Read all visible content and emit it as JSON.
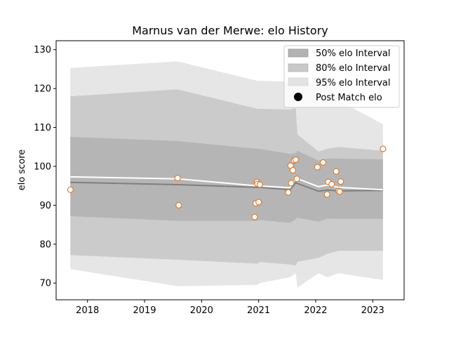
{
  "chart_data": {
    "type": "line",
    "title": "Marnus van der Merwe: elo History",
    "xlabel": "",
    "ylabel": "elo score",
    "xlim": [
      2017.45,
      2023.55
    ],
    "ylim": [
      65.7,
      132.3
    ],
    "x_ticks": [
      2018,
      2019,
      2020,
      2021,
      2022,
      2023
    ],
    "x_tick_labels": [
      "2018",
      "2019",
      "2020",
      "2021",
      "2022",
      "2023"
    ],
    "y_ticks": [
      70,
      80,
      90,
      100,
      110,
      120,
      130
    ],
    "y_tick_labels": [
      "70",
      "80",
      "90",
      "100",
      "110",
      "120",
      "130"
    ],
    "grid": false,
    "legend_position": "top-right",
    "legend": [
      {
        "label": "50% elo Interval",
        "kind": "band",
        "color": "#b3b3b3"
      },
      {
        "label": "80% elo Interval",
        "kind": "band",
        "color": "#c8c8c8"
      },
      {
        "label": "95% elo Interval",
        "kind": "band",
        "color": "#e3e3e3"
      },
      {
        "label": "Post Match elo",
        "kind": "marker",
        "color": "#000000"
      }
    ],
    "colors": {
      "band50": "#b3b3b3",
      "band80": "#c8c8c8",
      "band95": "#e3e3e3",
      "mean_line": "#7f7f7f",
      "pre_match_line": "#ffffff",
      "marker_edge": "#e07b2a",
      "marker_face": "#ffffff"
    },
    "interval_x": [
      2017.7,
      2019.58,
      2020.98,
      2021.02,
      2021.55,
      2021.65,
      2021.68,
      2022.05,
      2022.2,
      2022.4,
      2023.18
    ],
    "mean_elo": [
      95.9,
      95.3,
      94.6,
      94.6,
      94.0,
      95.8,
      95.6,
      93.6,
      93.9,
      93.7,
      93.8
    ],
    "band_50": {
      "lower": [
        87.2,
        86.0,
        86.0,
        86.2,
        85.5,
        86.4,
        86.8,
        85.8,
        86.6,
        86.5,
        86.5
      ],
      "upper": [
        107.6,
        106.5,
        104.5,
        104.5,
        103.2,
        103.4,
        104.0,
        101.5,
        102.0,
        102.0,
        101.8
      ]
    },
    "band_80": {
      "lower": [
        77.2,
        76.0,
        75.0,
        75.4,
        74.8,
        74.5,
        75.5,
        76.5,
        77.5,
        78.3,
        78.3
      ],
      "upper": [
        118.0,
        119.8,
        114.8,
        114.8,
        114.6,
        115.0,
        108.2,
        103.8,
        104.5,
        105.0,
        104.0
      ]
    },
    "band_95": {
      "lower": [
        73.6,
        69.2,
        69.5,
        70.0,
        71.5,
        72.5,
        68.8,
        72.5,
        71.5,
        72.5,
        70.8
      ],
      "upper": [
        125.3,
        127.0,
        122.0,
        122.0,
        121.8,
        121.5,
        121.5,
        121.5,
        121.5,
        117.0,
        110.8
      ]
    },
    "pre_match_elo": {
      "x": [
        2017.7,
        2019.58,
        2020.98,
        2021.55,
        2021.65,
        2022.05,
        2022.2,
        2022.4,
        2023.18
      ],
      "y": [
        97.3,
        96.8,
        95.0,
        94.5,
        97.0,
        94.8,
        95.2,
        94.6,
        94.0
      ]
    },
    "post_match_elo": {
      "x": [
        2017.7,
        2019.58,
        2019.6,
        2020.93,
        2020.95,
        2020.97,
        2020.98,
        2021.0,
        2021.02,
        2021.52,
        2021.56,
        2021.57,
        2021.6,
        2021.62,
        2021.65,
        2021.67,
        2022.03,
        2022.13,
        2022.2,
        2022.22,
        2022.28,
        2022.36,
        2022.4,
        2022.42,
        2022.44,
        2023.18
      ],
      "y": [
        94.0,
        97.0,
        90.0,
        87.0,
        90.5,
        96.0,
        95.5,
        90.8,
        95.3,
        93.3,
        100.2,
        95.7,
        99.0,
        101.5,
        101.7,
        96.8,
        99.8,
        101.0,
        92.8,
        96.0,
        95.4,
        98.7,
        93.7,
        93.5,
        96.1,
        104.5
      ]
    }
  }
}
